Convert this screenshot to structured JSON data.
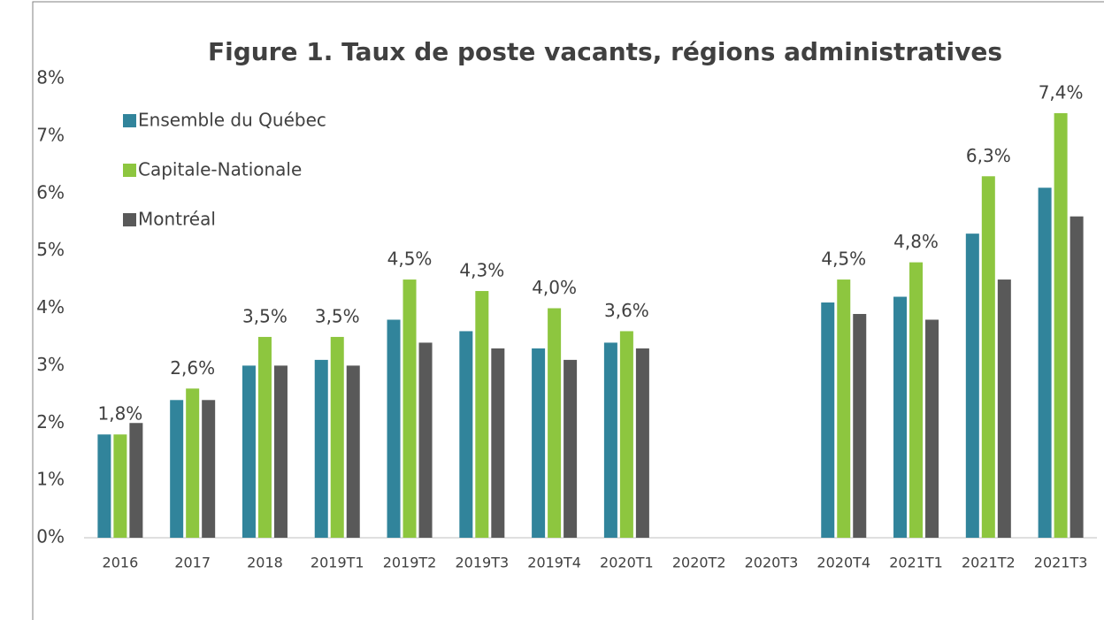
{
  "chart_data": {
    "type": "bar",
    "title": "Figure 1. Taux de poste vacants, régions administratives",
    "categories": [
      "2016",
      "2017",
      "2018",
      "2019T1",
      "2019T2",
      "2019T3",
      "2019T4",
      "2020T1",
      "2020T2",
      "2020T3",
      "2020T4",
      "2021T1",
      "2021T2",
      "2021T3"
    ],
    "series": [
      {
        "name": "Ensemble du Québec",
        "color": "#31849b",
        "values": [
          1.8,
          2.4,
          3.0,
          3.1,
          3.8,
          3.6,
          3.3,
          3.4,
          null,
          null,
          4.1,
          4.2,
          5.3,
          6.1
        ]
      },
      {
        "name": "Capitale-Nationale",
        "color": "#8dc63f",
        "values": [
          1.8,
          2.6,
          3.5,
          3.5,
          4.5,
          4.3,
          4.0,
          3.6,
          null,
          null,
          4.5,
          4.8,
          6.3,
          7.4
        ],
        "value_labels": [
          "1,8%",
          "2,6%",
          "3,5%",
          "3,5%",
          "4,5%",
          "4,3%",
          "4,0%",
          "3,6%",
          null,
          null,
          "4,5%",
          "4,8%",
          "6,3%",
          "7,4%"
        ]
      },
      {
        "name": "Montréal",
        "color": "#595959",
        "values": [
          2.0,
          2.4,
          3.0,
          3.0,
          3.4,
          3.3,
          3.1,
          3.3,
          null,
          null,
          3.9,
          3.8,
          4.5,
          5.6
        ]
      }
    ],
    "ylim": [
      0,
      8
    ],
    "yticks": [
      {
        "value": 0,
        "label": "0%"
      },
      {
        "value": 1,
        "label": "1%"
      },
      {
        "value": 2,
        "label": "2%"
      },
      {
        "value": 3,
        "label": "3%"
      },
      {
        "value": 4,
        "label": "4%"
      },
      {
        "value": 5,
        "label": "5%"
      },
      {
        "value": 6,
        "label": "6%"
      },
      {
        "value": 7,
        "label": "7%"
      },
      {
        "value": 8,
        "label": "8%"
      }
    ],
    "grid": false,
    "legend": "top-left"
  }
}
